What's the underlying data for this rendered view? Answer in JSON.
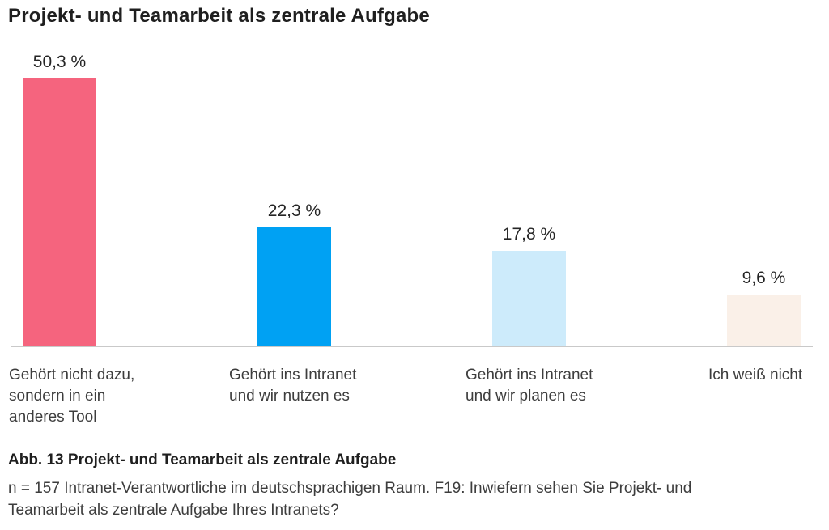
{
  "chart_data": {
    "type": "bar",
    "title": "Projekt- und Teamarbeit als zentrale Aufgabe",
    "categories": [
      "Gehört nicht dazu,\nsondern in ein\nanderes Tool",
      "Gehört ins Intranet\nund wir nutzen es",
      "Gehört ins Intranet\nund wir planen es",
      "Ich weiß nicht"
    ],
    "values": [
      50.3,
      22.3,
      17.8,
      9.6
    ],
    "value_labels": [
      "50,3 %",
      "22,3 %",
      "17,8 %",
      "9,6 %"
    ],
    "bar_colors": [
      "#F5647E",
      "#00A1F3",
      "#CDEBFB",
      "#FAF0E8"
    ],
    "unit": "%",
    "xlabel": "",
    "ylabel": "",
    "ylim": [
      0,
      55
    ],
    "grid": false,
    "legend": "none",
    "axis_line_color": "#C9C9C9"
  },
  "figure": {
    "caption": "Abb. 13 Projekt- und Teamarbeit als zentrale Aufgabe",
    "note": "n = 157 Intranet-Verantwortliche im deutschsprachigen Raum. F19: Inwiefern sehen Sie Projekt- und\nTeamarbeit als zentrale Aufgabe Ihres Intranets?"
  },
  "colors": {
    "title_text": "#1F1F1F",
    "body_text": "#3D3D3D",
    "value_text": "#252525",
    "background": "#FFFFFF"
  }
}
